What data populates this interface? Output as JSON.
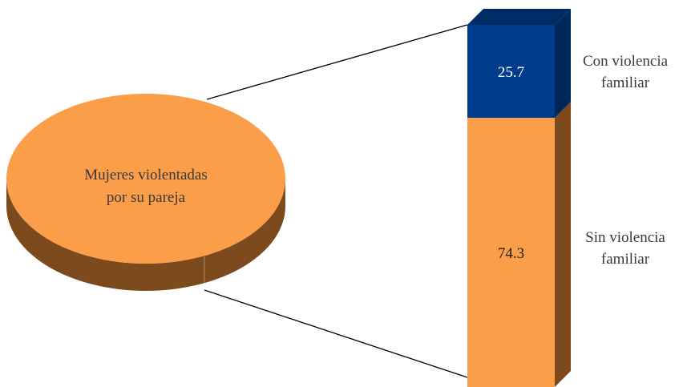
{
  "chart_data": {
    "type": "bar",
    "subtype": "pie-of-bar (stacked percent bar)",
    "pie_label": "Mujeres violentadas\npor su pareja",
    "categories": [
      "Con violencia familiar",
      "Sin violencia familiar"
    ],
    "series": [
      {
        "values": [
          25.7,
          74.3
        ]
      }
    ],
    "segment_labels": [
      "Con violencia\nfamiliar",
      "Sin violencia\nfamiliar"
    ],
    "value_labels": [
      "25.7",
      "74.3"
    ],
    "colors": {
      "con_front": "#003C8C",
      "con_side": "#00275A",
      "con_top": "#002C66",
      "sin_front": "#FB9E4A",
      "sin_side": "#7D4A1E",
      "pie_top": "#FB9E4A",
      "pie_side": "#7D4A1E",
      "connector": "#000000",
      "label_text": "#3A3A3A",
      "value_text_con": "#FFFFFF",
      "value_text_sin": "#222222"
    },
    "ylim": [
      0,
      100
    ],
    "grid": false,
    "legend": "none"
  }
}
